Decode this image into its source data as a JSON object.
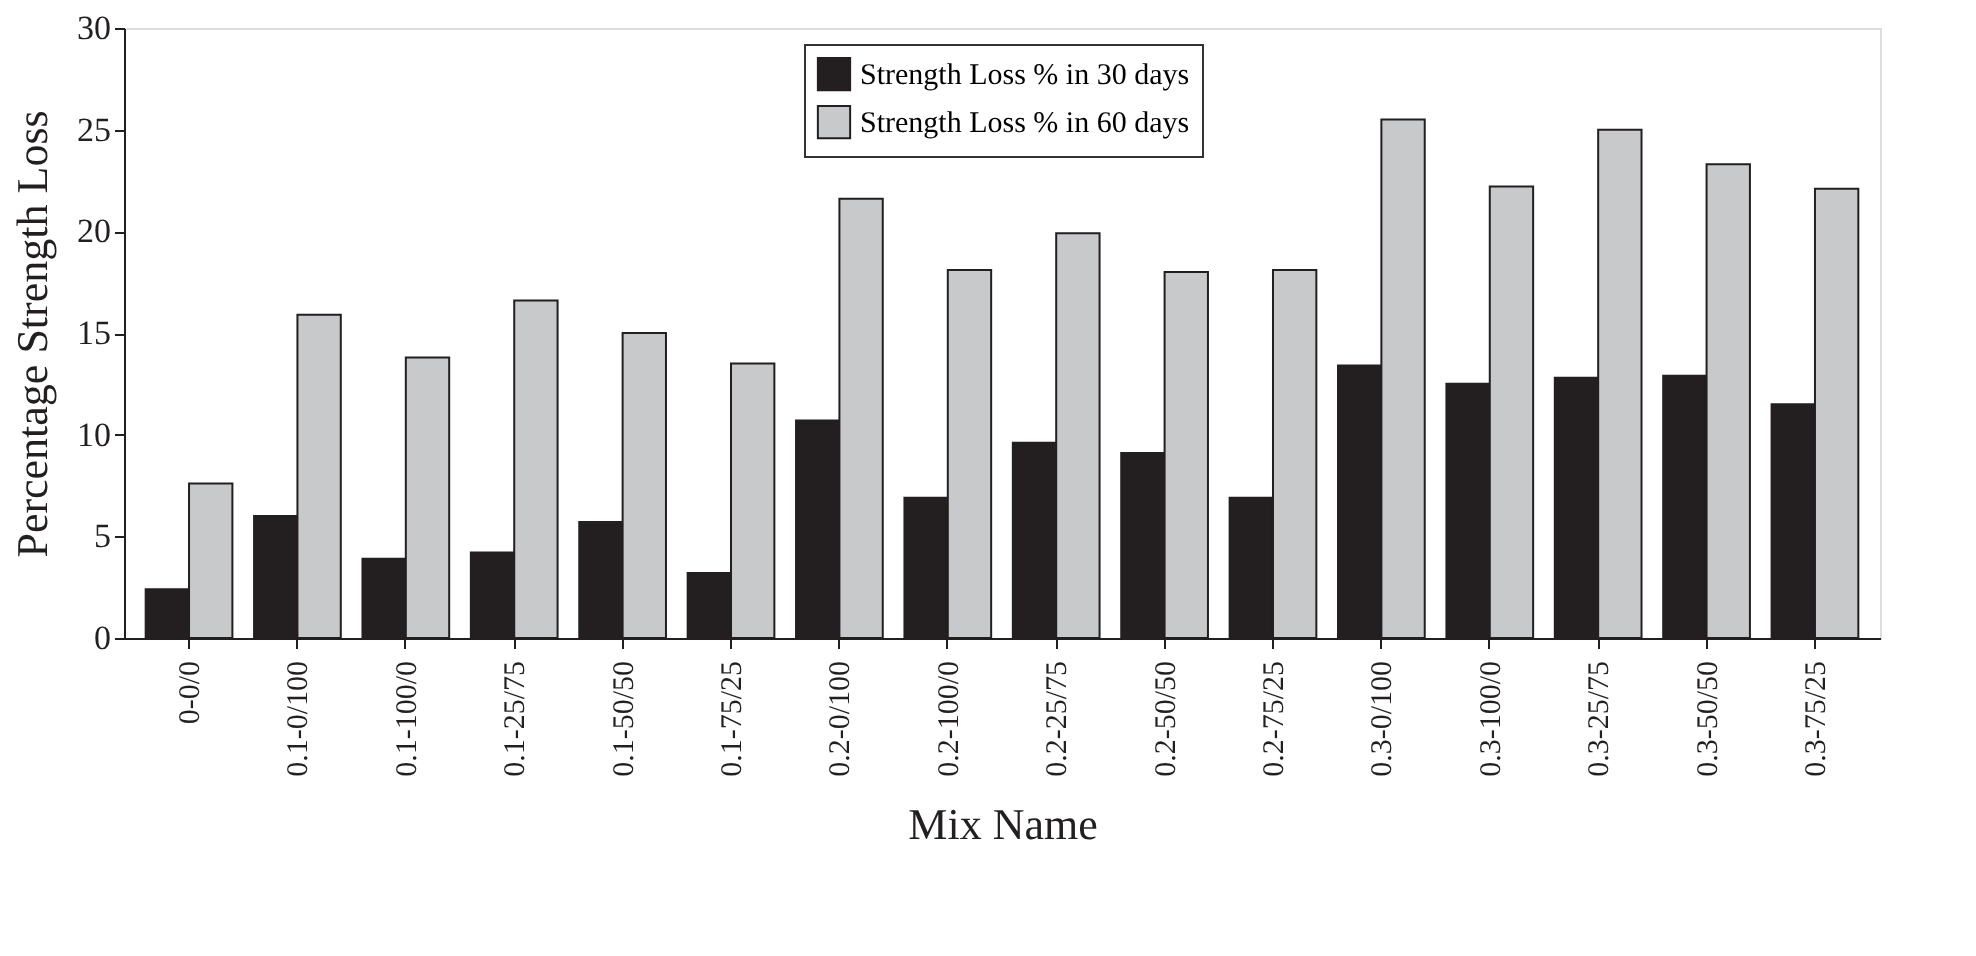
{
  "chart_data": {
    "type": "bar",
    "xlabel": "Mix Name",
    "ylabel": "Percentage Strength Loss",
    "categories": [
      "0-0/0",
      "0.1-0/100",
      "0.1-100/0",
      "0.1-25/75",
      "0.1-50/50",
      "0.1-75/25",
      "0.2-0/100",
      "0.2-100/0",
      "0.2-25/75",
      "0.2-50/50",
      "0.2-75/25",
      "0.3-0/100",
      "0.3-100/0",
      "0.3-25/75",
      "0.3-50/50",
      "0.3-75/25"
    ],
    "series": [
      {
        "name": "Strength Loss % in 30 days",
        "color": "#231f20",
        "values": [
          2.4,
          6.0,
          3.9,
          4.2,
          5.7,
          3.2,
          10.7,
          6.9,
          9.6,
          9.1,
          6.9,
          13.4,
          12.5,
          12.8,
          12.9,
          11.5
        ]
      },
      {
        "name": "Strength Loss % in 60 days",
        "color": "#c8c9cb",
        "values": [
          7.6,
          15.9,
          13.8,
          16.6,
          15.0,
          13.5,
          21.6,
          18.1,
          19.9,
          18.0,
          18.1,
          25.5,
          22.2,
          25.0,
          23.3,
          22.1
        ]
      }
    ],
    "ylim": [
      0,
      30
    ],
    "yticks": [
      0,
      5,
      10,
      15,
      20,
      25,
      30
    ],
    "grid": false,
    "legend": "top"
  }
}
